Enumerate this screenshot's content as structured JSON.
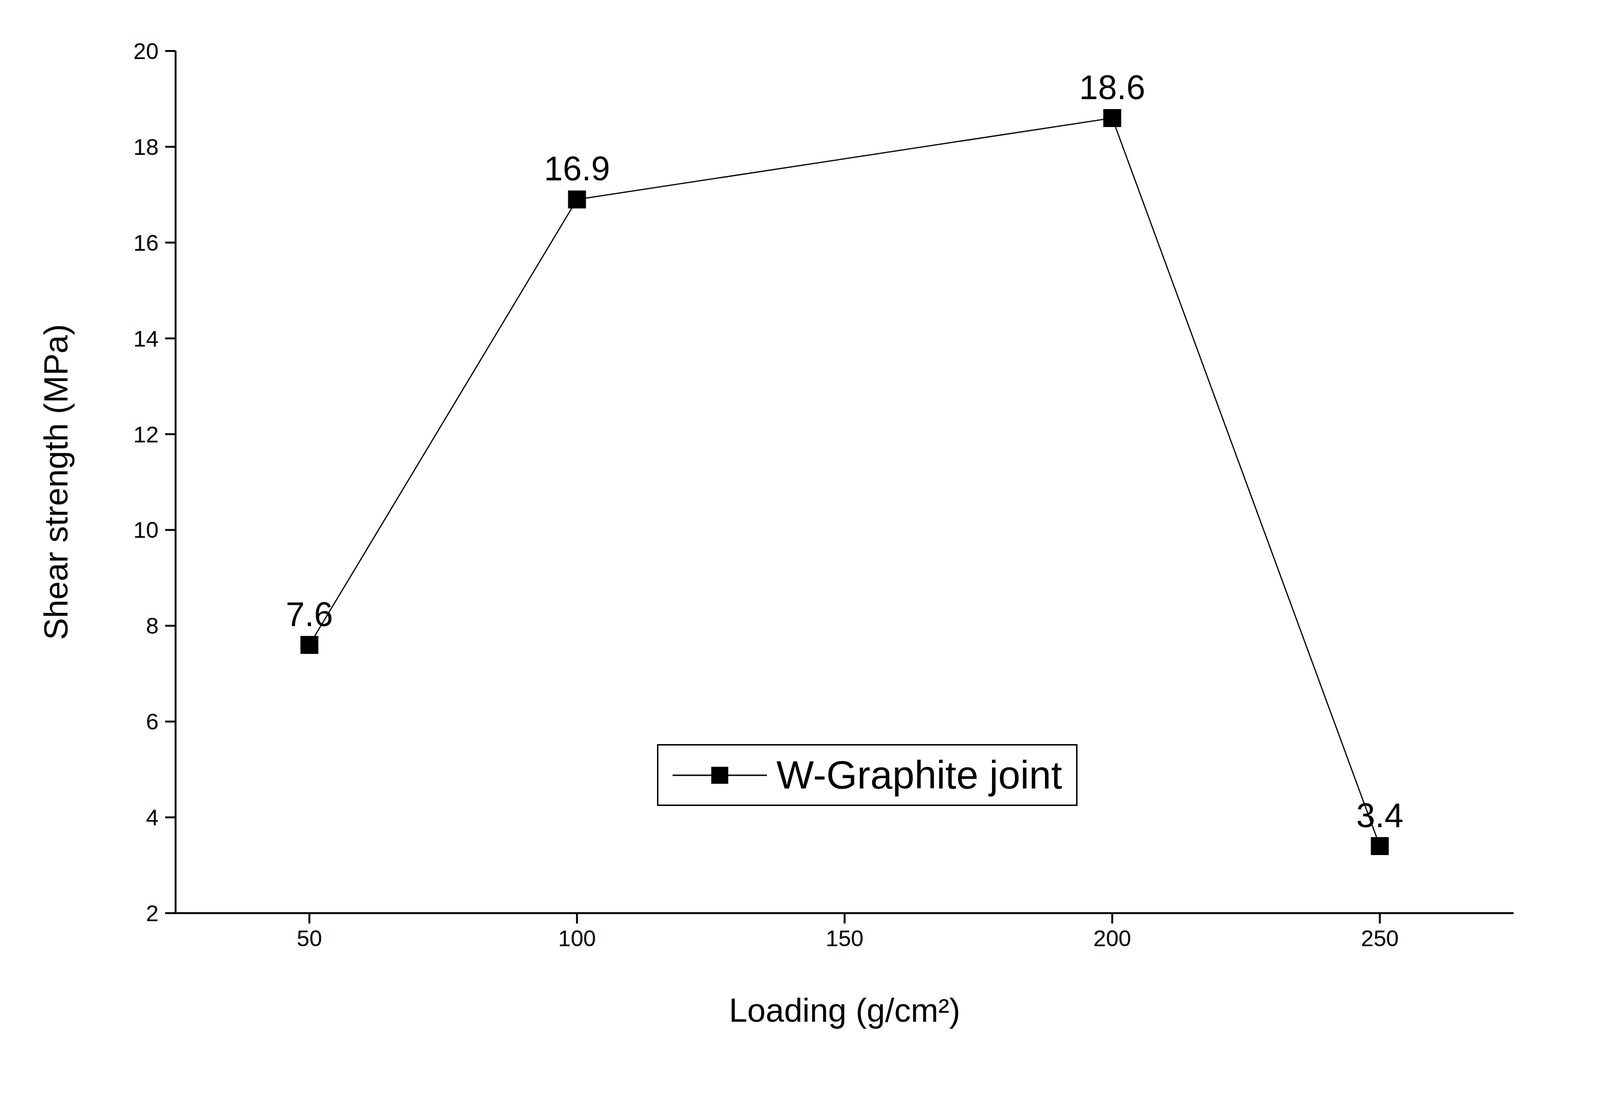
{
  "chart_data": {
    "type": "line",
    "x": [
      50,
      100,
      200,
      250
    ],
    "series": [
      {
        "name": "W-Graphite joint",
        "color": "#000000",
        "values": [
          7.6,
          16.9,
          18.6,
          3.4
        ],
        "marker": "square",
        "line_style": "solid"
      }
    ],
    "xlim": [
      25,
      275
    ],
    "xticks": [
      50,
      100,
      150,
      200,
      250
    ],
    "ylim": [
      2,
      20
    ],
    "yticks": [
      2,
      4,
      6,
      8,
      10,
      12,
      14,
      16,
      18,
      20
    ],
    "xlabel": "Loading (g/cm²)",
    "ylabel": "Shear strength (MPa)",
    "data_labels": true,
    "legend": "lower center",
    "grid": false
  }
}
